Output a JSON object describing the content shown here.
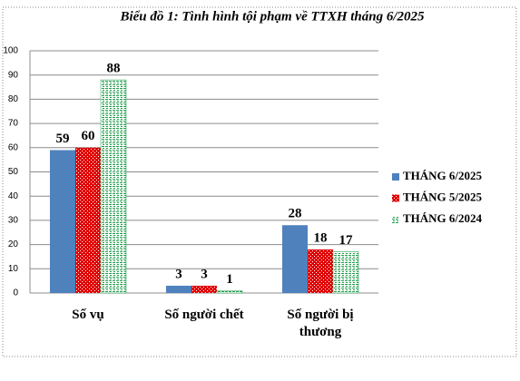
{
  "chart_data": {
    "type": "bar",
    "title": "Biểu đồ 1: Tình hình tội phạm về TTXH tháng 6/2025",
    "categories": [
      "Số vụ",
      "Số người chết",
      "Số người bị thương"
    ],
    "series": [
      {
        "name": "THÁNG 6/2025",
        "color": "#4f81bd",
        "pattern": "solid",
        "values": [
          59,
          3,
          28
        ]
      },
      {
        "name": "THÁNG 5/2025",
        "color": "#e00000",
        "pattern": "checker",
        "values": [
          60,
          3,
          18
        ]
      },
      {
        "name": "THÁNG 6/2024",
        "color": "#1f9c4a",
        "pattern": "dashes",
        "values": [
          88,
          1,
          17
        ]
      }
    ],
    "ylim": [
      0,
      100
    ],
    "yticks": [
      0,
      10,
      20,
      30,
      40,
      50,
      60,
      70,
      80,
      90,
      100
    ],
    "grid": true,
    "legend": "right"
  }
}
